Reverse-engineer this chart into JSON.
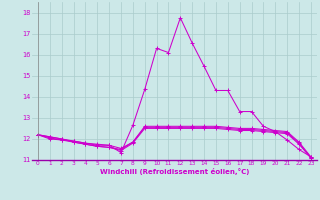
{
  "xlabel": "Windchill (Refroidissement éolien,°C)",
  "background_color": "#cce8e8",
  "grid_color": "#aacccc",
  "line_color": "#cc00cc",
  "xlim": [
    -0.5,
    23.5
  ],
  "ylim": [
    11.0,
    18.5
  ],
  "yticks": [
    11,
    12,
    13,
    14,
    15,
    16,
    17,
    18
  ],
  "xticks": [
    0,
    1,
    2,
    3,
    4,
    5,
    6,
    7,
    8,
    9,
    10,
    11,
    12,
    13,
    14,
    15,
    16,
    17,
    18,
    19,
    20,
    21,
    22,
    23
  ],
  "series": [
    [
      12.2,
      12.05,
      11.95,
      11.85,
      11.75,
      11.65,
      11.6,
      11.5,
      11.85,
      12.55,
      12.55,
      12.55,
      12.55,
      12.55,
      12.55,
      12.55,
      12.5,
      12.45,
      12.45,
      12.4,
      12.35,
      12.3,
      11.8,
      11.1
    ],
    [
      12.2,
      12.1,
      12.0,
      11.85,
      11.75,
      11.65,
      11.6,
      11.45,
      11.8,
      12.5,
      12.5,
      12.5,
      12.5,
      12.5,
      12.5,
      12.5,
      12.45,
      12.4,
      12.4,
      12.35,
      12.3,
      12.25,
      11.75,
      11.1
    ],
    [
      12.2,
      12.1,
      12.0,
      11.9,
      11.8,
      11.75,
      11.7,
      11.55,
      11.85,
      12.6,
      12.6,
      12.6,
      12.6,
      12.6,
      12.6,
      12.6,
      12.55,
      12.5,
      12.5,
      12.45,
      12.4,
      12.35,
      11.85,
      11.15
    ],
    [
      12.2,
      12.0,
      11.95,
      11.9,
      11.8,
      11.7,
      11.7,
      11.35,
      12.65,
      14.35,
      16.3,
      16.1,
      17.75,
      16.55,
      15.45,
      14.3,
      14.3,
      13.3,
      13.3,
      12.6,
      12.35,
      11.95,
      11.5,
      11.15
    ]
  ]
}
